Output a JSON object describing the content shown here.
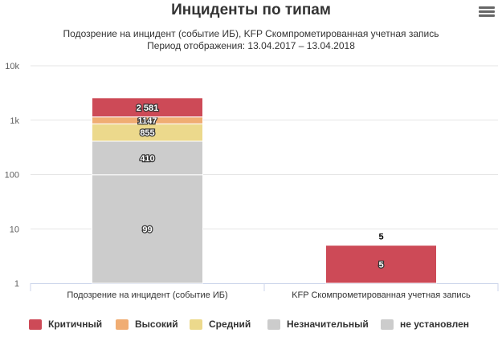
{
  "header": {
    "title": "Инциденты по типам",
    "subtitle_line1": "Подозрение на инцидент (событие ИБ), KFP Скомпрометированная учетная запись",
    "subtitle_line2": "Период отображения: 13.04.2017 – 13.04.2018",
    "menu_icon": "hamburger-menu-icon"
  },
  "chart_data": {
    "type": "bar",
    "stacked": true,
    "categories": [
      "Подозрение на инцидент (событие ИБ)",
      "KFP Скомпрометированная учетная запись"
    ],
    "y_scale": "log",
    "ylim": [
      1,
      10000
    ],
    "y_ticks": [
      {
        "value": 1,
        "label": "1"
      },
      {
        "value": 10,
        "label": "10"
      },
      {
        "value": 100,
        "label": "100"
      },
      {
        "value": 1000,
        "label": "1k"
      },
      {
        "value": 10000,
        "label": "10k"
      }
    ],
    "grid": true,
    "legend_position": "bottom",
    "series": [
      {
        "name": "Критичный",
        "color": "#cd4a57",
        "values": [
          2581,
          5
        ]
      },
      {
        "name": "Высокий",
        "color": "#f0ad73",
        "values": [
          1147,
          null
        ]
      },
      {
        "name": "Средний",
        "color": "#ecd98c",
        "values": [
          855,
          null
        ]
      },
      {
        "name": "Незначительный",
        "color": "#cccccc",
        "values": [
          410,
          null
        ]
      },
      {
        "name": "не установлен",
        "color": "#cccccc",
        "values": [
          99,
          null
        ]
      }
    ],
    "segment_labels": [
      [
        "2 581",
        "1147",
        "855",
        "410",
        "99"
      ],
      [
        "5",
        "",
        "",
        "",
        ""
      ]
    ],
    "totals": [
      "",
      "5"
    ]
  }
}
